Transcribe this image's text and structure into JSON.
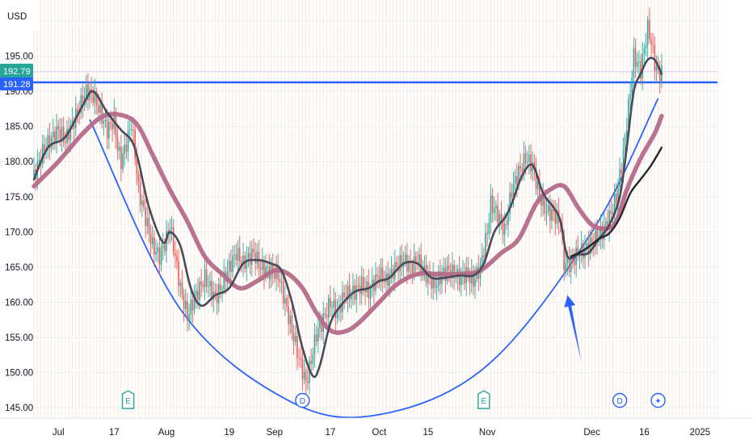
{
  "chart_data": {
    "type": "line",
    "currency": "USD",
    "ylim": [
      143.5,
      203.0
    ],
    "xlim": [
      "2024-06-24",
      "2025-01-06"
    ],
    "y_ticks": [
      "145.00",
      "150.00",
      "155.00",
      "160.00",
      "165.00",
      "170.00",
      "175.00",
      "180.00",
      "185.00",
      "190.00",
      "195.00",
      "200.00"
    ],
    "x_ticks": [
      {
        "label": "Jul",
        "date": "2024-07-01"
      },
      {
        "label": "17",
        "date": "2024-07-17"
      },
      {
        "label": "Aug",
        "date": "2024-08-01"
      },
      {
        "label": "19",
        "date": "2024-08-19"
      },
      {
        "label": "Sep",
        "date": "2024-09-01"
      },
      {
        "label": "17",
        "date": "2024-09-17"
      },
      {
        "label": "Oct",
        "date": "2024-10-01"
      },
      {
        "label": "15",
        "date": "2024-10-15"
      },
      {
        "label": "Nov",
        "date": "2024-11-01"
      },
      {
        "label": "Dec",
        "date": "2024-12-01"
      },
      {
        "label": "16",
        "date": "2024-12-16"
      },
      {
        "label": "2025",
        "date": "2025-01-01"
      }
    ],
    "price_tags": [
      {
        "label": "192.79",
        "value": 192.79,
        "color": "#26a69a"
      },
      {
        "label": "191.28",
        "value": 191.28,
        "color": "#2962ff"
      }
    ],
    "horizontal_line": {
      "value": 191.28,
      "color": "#2962ff"
    },
    "event_markers": [
      {
        "label": "E",
        "date": "2024-07-21",
        "color": "#26a69a"
      },
      {
        "label": "D",
        "date": "2024-09-09",
        "color": "#2962ff"
      },
      {
        "label": "E",
        "date": "2024-10-31",
        "color": "#26a69a"
      },
      {
        "label": "D",
        "date": "2024-12-09",
        "color": "#2962ff"
      },
      {
        "label": "✦",
        "date": "2024-12-20",
        "color": "#2962ff"
      }
    ],
    "price_series": {
      "up_color": "#26a69a",
      "down_color": "#ef5350",
      "points": [
        [
          "2024-06-24",
          178.0
        ],
        [
          "2024-06-27",
          182.0
        ],
        [
          "2024-07-01",
          184.5
        ],
        [
          "2024-07-03",
          183.0
        ],
        [
          "2024-07-06",
          186.5
        ],
        [
          "2024-07-09",
          190.0
        ],
        [
          "2024-07-11",
          189.5
        ],
        [
          "2024-07-13",
          187.0
        ],
        [
          "2024-07-15",
          184.5
        ],
        [
          "2024-07-17",
          186.0
        ],
        [
          "2024-07-18",
          182.0
        ],
        [
          "2024-07-19",
          180.0
        ],
        [
          "2024-07-21",
          183.5
        ],
        [
          "2024-07-22",
          185.5
        ],
        [
          "2024-07-23",
          181.0
        ],
        [
          "2024-07-24",
          176.0
        ],
        [
          "2024-07-26",
          172.0
        ],
        [
          "2024-07-28",
          168.0
        ],
        [
          "2024-07-30",
          166.5
        ],
        [
          "2024-08-01",
          169.0
        ],
        [
          "2024-08-02",
          171.0
        ],
        [
          "2024-08-05",
          162.0
        ],
        [
          "2024-08-07",
          158.0
        ],
        [
          "2024-08-09",
          160.5
        ],
        [
          "2024-08-12",
          163.5
        ],
        [
          "2024-08-15",
          160.5
        ],
        [
          "2024-08-17",
          162.5
        ],
        [
          "2024-08-19",
          165.0
        ],
        [
          "2024-08-21",
          167.0
        ],
        [
          "2024-08-23",
          165.5
        ],
        [
          "2024-08-26",
          167.0
        ],
        [
          "2024-08-28",
          165.0
        ],
        [
          "2024-08-30",
          164.5
        ],
        [
          "2024-09-02",
          164.0
        ],
        [
          "2024-09-04",
          160.0
        ],
        [
          "2024-09-06",
          156.0
        ],
        [
          "2024-09-08",
          152.0
        ],
        [
          "2024-09-10",
          148.5
        ],
        [
          "2024-09-11",
          150.5
        ],
        [
          "2024-09-13",
          155.5
        ],
        [
          "2024-09-15",
          157.5
        ],
        [
          "2024-09-17",
          160.0
        ],
        [
          "2024-09-19",
          158.5
        ],
        [
          "2024-09-21",
          161.0
        ],
        [
          "2024-09-24",
          161.5
        ],
        [
          "2024-09-26",
          162.5
        ],
        [
          "2024-09-28",
          161.5
        ],
        [
          "2024-10-01",
          164.0
        ],
        [
          "2024-10-03",
          163.0
        ],
        [
          "2024-10-05",
          164.5
        ],
        [
          "2024-10-08",
          166.0
        ],
        [
          "2024-10-10",
          165.0
        ],
        [
          "2024-10-12",
          166.0
        ],
        [
          "2024-10-15",
          163.5
        ],
        [
          "2024-10-17",
          162.5
        ],
        [
          "2024-10-19",
          164.0
        ],
        [
          "2024-10-21",
          164.5
        ],
        [
          "2024-10-24",
          163.5
        ],
        [
          "2024-10-26",
          164.0
        ],
        [
          "2024-10-28",
          163.0
        ],
        [
          "2024-10-30",
          165.0
        ],
        [
          "2024-11-01",
          170.0
        ],
        [
          "2024-11-02",
          174.0
        ],
        [
          "2024-11-04",
          172.5
        ],
        [
          "2024-11-06",
          170.0
        ],
        [
          "2024-11-08",
          176.0
        ],
        [
          "2024-11-10",
          178.5
        ],
        [
          "2024-11-12",
          180.5
        ],
        [
          "2024-11-14",
          179.5
        ],
        [
          "2024-11-16",
          175.0
        ],
        [
          "2024-11-18",
          173.0
        ],
        [
          "2024-11-20",
          172.5
        ],
        [
          "2024-11-22",
          171.5
        ],
        [
          "2024-11-23",
          165.5
        ],
        [
          "2024-11-25",
          165.5
        ],
        [
          "2024-11-27",
          167.0
        ],
        [
          "2024-11-29",
          167.5
        ],
        [
          "2024-12-01",
          168.5
        ],
        [
          "2024-12-04",
          170.0
        ],
        [
          "2024-12-06",
          172.0
        ],
        [
          "2024-12-08",
          175.0
        ],
        [
          "2024-12-10",
          181.0
        ],
        [
          "2024-12-12",
          190.0
        ],
        [
          "2024-12-13",
          195.0
        ],
        [
          "2024-12-15",
          193.0
        ],
        [
          "2024-12-16",
          196.0
        ],
        [
          "2024-12-17",
          199.0
        ],
        [
          "2024-12-18",
          197.0
        ],
        [
          "2024-12-19",
          194.0
        ],
        [
          "2024-12-20",
          192.5
        ],
        [
          "2024-12-21",
          192.79
        ]
      ]
    },
    "series": [
      {
        "color": "#4a4a5a",
        "values": [
          [
            "2024-06-24",
            177.5
          ],
          [
            "2024-06-28",
            182.0
          ],
          [
            "2024-07-03",
            183.5
          ],
          [
            "2024-07-08",
            188.0
          ],
          [
            "2024-07-11",
            190.0
          ],
          [
            "2024-07-15",
            187.0
          ],
          [
            "2024-07-19",
            184.5
          ],
          [
            "2024-07-22",
            183.0
          ],
          [
            "2024-07-24",
            180.0
          ],
          [
            "2024-07-27",
            173.5
          ],
          [
            "2024-07-31",
            168.5
          ],
          [
            "2024-08-02",
            170.0
          ],
          [
            "2024-08-05",
            168.0
          ],
          [
            "2024-08-08",
            162.0
          ],
          [
            "2024-08-11",
            159.5
          ],
          [
            "2024-08-15",
            161.0
          ],
          [
            "2024-08-19",
            162.0
          ],
          [
            "2024-08-23",
            165.5
          ],
          [
            "2024-08-27",
            166.0
          ],
          [
            "2024-08-31",
            165.5
          ],
          [
            "2024-09-03",
            164.5
          ],
          [
            "2024-09-06",
            160.0
          ],
          [
            "2024-09-09",
            153.5
          ],
          [
            "2024-09-12",
            149.5
          ],
          [
            "2024-09-14",
            151.0
          ],
          [
            "2024-09-17",
            157.0
          ],
          [
            "2024-09-20",
            159.5
          ],
          [
            "2024-09-24",
            161.5
          ],
          [
            "2024-09-28",
            162.0
          ],
          [
            "2024-10-01",
            163.0
          ],
          [
            "2024-10-04",
            163.5
          ],
          [
            "2024-10-08",
            165.5
          ],
          [
            "2024-10-12",
            165.5
          ],
          [
            "2024-10-16",
            163.5
          ],
          [
            "2024-10-20",
            163.5
          ],
          [
            "2024-10-24",
            163.8
          ],
          [
            "2024-10-28",
            163.8
          ],
          [
            "2024-10-31",
            165.5
          ],
          [
            "2024-11-03",
            170.0
          ],
          [
            "2024-11-06",
            172.0
          ],
          [
            "2024-11-08",
            174.0
          ],
          [
            "2024-11-11",
            178.0
          ],
          [
            "2024-11-14",
            179.5
          ],
          [
            "2024-11-17",
            175.5
          ],
          [
            "2024-11-20",
            173.5
          ],
          [
            "2024-11-22",
            171.5
          ],
          [
            "2024-11-24",
            166.5
          ],
          [
            "2024-11-27",
            166.8
          ],
          [
            "2024-11-30",
            167.0
          ],
          [
            "2024-12-03",
            169.0
          ],
          [
            "2024-12-06",
            171.0
          ],
          [
            "2024-12-09",
            175.0
          ],
          [
            "2024-12-11",
            182.0
          ],
          [
            "2024-12-13",
            190.0
          ],
          [
            "2024-12-15",
            192.5
          ],
          [
            "2024-12-17",
            194.5
          ],
          [
            "2024-12-19",
            194.5
          ],
          [
            "2024-12-21",
            192.5
          ]
        ]
      },
      {
        "color": "#b56c8a",
        "values": [
          [
            "2024-06-24",
            176.5
          ],
          [
            "2024-07-01",
            180.0
          ],
          [
            "2024-07-08",
            184.0
          ],
          [
            "2024-07-14",
            186.5
          ],
          [
            "2024-07-20",
            186.5
          ],
          [
            "2024-07-24",
            185.0
          ],
          [
            "2024-07-28",
            181.0
          ],
          [
            "2024-08-02",
            176.0
          ],
          [
            "2024-08-07",
            171.5
          ],
          [
            "2024-08-12",
            166.5
          ],
          [
            "2024-08-17",
            164.0
          ],
          [
            "2024-08-22",
            162.0
          ],
          [
            "2024-08-27",
            163.0
          ],
          [
            "2024-09-01",
            164.5
          ],
          [
            "2024-09-05",
            164.0
          ],
          [
            "2024-09-09",
            162.0
          ],
          [
            "2024-09-13",
            158.5
          ],
          [
            "2024-09-17",
            156.0
          ],
          [
            "2024-09-21",
            155.8
          ],
          [
            "2024-09-25",
            157.0
          ],
          [
            "2024-10-01",
            160.0
          ],
          [
            "2024-10-06",
            162.5
          ],
          [
            "2024-10-12",
            164.0
          ],
          [
            "2024-10-18",
            164.0
          ],
          [
            "2024-10-24",
            164.0
          ],
          [
            "2024-10-30",
            164.5
          ],
          [
            "2024-11-05",
            167.0
          ],
          [
            "2024-11-10",
            169.0
          ],
          [
            "2024-11-15",
            174.0
          ],
          [
            "2024-11-19",
            176.0
          ],
          [
            "2024-11-23",
            176.5
          ],
          [
            "2024-11-27",
            173.5
          ],
          [
            "2024-12-01",
            171.0
          ],
          [
            "2024-12-05",
            170.5
          ],
          [
            "2024-12-08",
            171.5
          ],
          [
            "2024-12-11",
            176.0
          ],
          [
            "2024-12-15",
            180.5
          ],
          [
            "2024-12-19",
            184.0
          ],
          [
            "2024-12-21",
            186.5
          ]
        ]
      },
      {
        "color": "#26262e",
        "values": [
          [
            "2024-11-25",
            166.5
          ],
          [
            "2024-11-29",
            167.5
          ],
          [
            "2024-12-03",
            169.0
          ],
          [
            "2024-12-06",
            169.8
          ],
          [
            "2024-12-09",
            172.0
          ],
          [
            "2024-12-12",
            175.5
          ],
          [
            "2024-12-15",
            177.5
          ],
          [
            "2024-12-18",
            179.5
          ],
          [
            "2024-12-21",
            182.0
          ]
        ]
      }
    ],
    "annotations": [
      {
        "type": "curve",
        "color": "#2962ff",
        "points": [
          [
            "2024-07-10",
            186.0
          ],
          [
            "2024-08-05",
            159.0
          ],
          [
            "2024-09-05",
            146.0
          ],
          [
            "2024-10-01",
            144.0
          ],
          [
            "2024-11-01",
            151.0
          ],
          [
            "2024-12-01",
            170.0
          ],
          [
            "2024-12-20",
            189.0
          ]
        ]
      },
      {
        "type": "arrow",
        "color": "#2962ff",
        "from": [
          "2024-11-28",
          151.5
        ],
        "to": [
          "2024-11-24",
          161.0
        ]
      }
    ]
  }
}
